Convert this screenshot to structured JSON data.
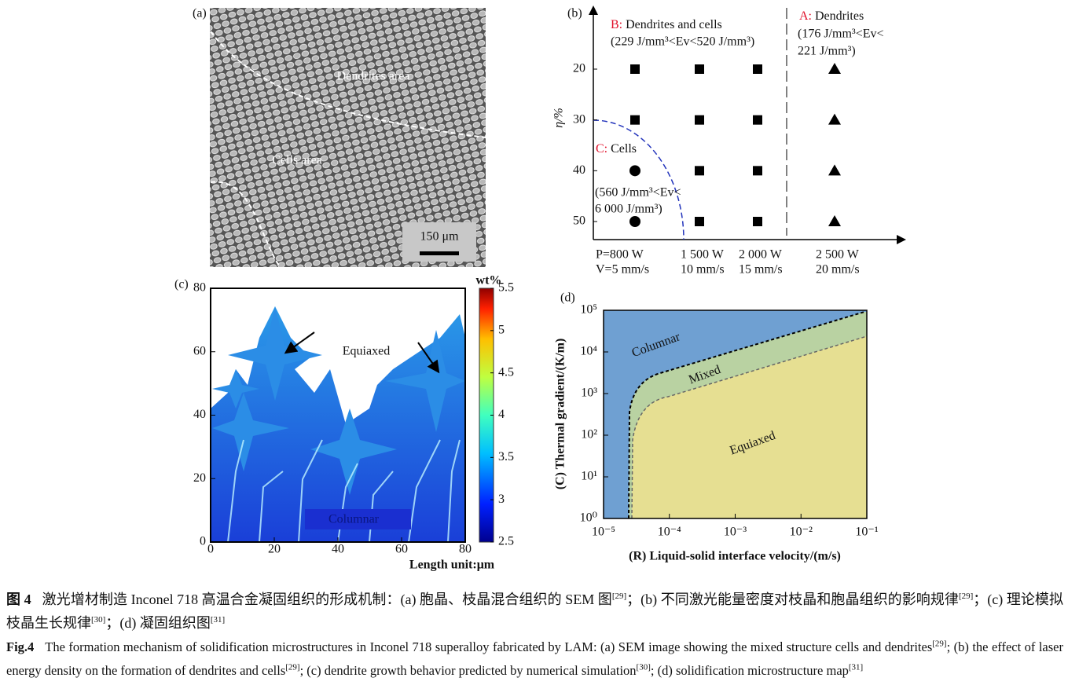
{
  "panel_a": {
    "label": "(a)",
    "dendrites_area": "Dendrites area",
    "cells_area": "Cells area",
    "scale_bar": "150 μm"
  },
  "panel_b": {
    "label": "(b)",
    "y_label": "η/%",
    "yticks": [
      20,
      30,
      40,
      50
    ],
    "x_categories": [
      [
        "P=800 W",
        "V=5 mm/s"
      ],
      [
        "1 500 W",
        "10 mm/s"
      ],
      [
        "2 000 W",
        "15 mm/s"
      ],
      [
        "2 500 W",
        "20 mm/s"
      ]
    ],
    "region_a": {
      "key": "A:",
      "name": "Dendrites",
      "range": [
        "(176 J/mm³<Ev<",
        "221 J/mm³)"
      ]
    },
    "region_b": {
      "key": "B:",
      "name": "Dendrites and cells",
      "range": [
        "(229 J/mm³<Ev<520 J/mm³)"
      ]
    },
    "region_c": {
      "key": "C:",
      "name": "Cells",
      "range": [
        "(560 J/mm³<Ev<",
        "6 000 J/mm³)"
      ]
    }
  },
  "panel_c": {
    "label": "(c)",
    "xlim": [
      0,
      80
    ],
    "ylim": [
      0,
      80
    ],
    "xticks": [
      0,
      20,
      40,
      60,
      80
    ],
    "yticks": [
      0,
      20,
      40,
      60,
      80
    ],
    "x_unit": "Length unit:μm",
    "equiaxed": "Equiaxed",
    "columnar": "Columnar",
    "colorbar": {
      "title": "wt%",
      "lim": [
        2.5,
        5.5
      ],
      "ticks": [
        2.5,
        3,
        3.5,
        4,
        4.5,
        5,
        5.5
      ]
    }
  },
  "panel_d": {
    "label": "(d)",
    "log_scale": true,
    "xlim": [
      1e-05,
      0.1
    ],
    "ylim": [
      1,
      100000
    ],
    "xticks": [
      {
        "value": 1e-05,
        "label": "10⁻⁵"
      },
      {
        "value": 0.0001,
        "label": "10⁻⁴"
      },
      {
        "value": 0.001,
        "label": "10⁻³"
      },
      {
        "value": 0.01,
        "label": "10⁻²"
      },
      {
        "value": 0.1,
        "label": "10⁻¹"
      }
    ],
    "yticks": [
      {
        "value": 1,
        "label": "10⁰"
      },
      {
        "value": 10,
        "label": "10¹"
      },
      {
        "value": 100,
        "label": "10²"
      },
      {
        "value": 1000,
        "label": "10³"
      },
      {
        "value": 10000,
        "label": "10⁴"
      },
      {
        "value": 100000,
        "label": "10⁵"
      }
    ],
    "x_label": "(R) Liquid-solid interface velocity/(m/s)",
    "y_label": "(C) Thermal gradient/(K/m)",
    "columnar": "Columnar",
    "mixed": "Mixed",
    "equiaxed": "Equiaxed"
  },
  "caption": {
    "cn": {
      "label": "图 4",
      "parts": [
        "激光增材制造 Inconel 718 高温合金凝固组织的形成机制：(a) 胞晶、枝晶混合组织的 SEM 图",
        "[29]",
        "；(b) 不同激光能量密度对枝晶和胞晶组织的影响规律",
        "[29]",
        "；(c) 理论模拟枝晶生长规律",
        "[30]",
        "；(d) 凝固组织图",
        "[31]"
      ]
    },
    "en": {
      "label": "Fig.4",
      "parts": [
        "The formation mechanism of solidification microstructures in Inconel 718 superalloy fabricated by LAM: (a) SEM image showing the mixed structure cells and dendrites",
        "[29]",
        "; (b) the effect of laser energy density on the formation of dendrites and cells",
        "[29]",
        "; (c) dendrite growth behavior predicted by numerical simulation",
        "[30]",
        "; (d) solidification microstructure map",
        "[31]"
      ]
    }
  }
}
